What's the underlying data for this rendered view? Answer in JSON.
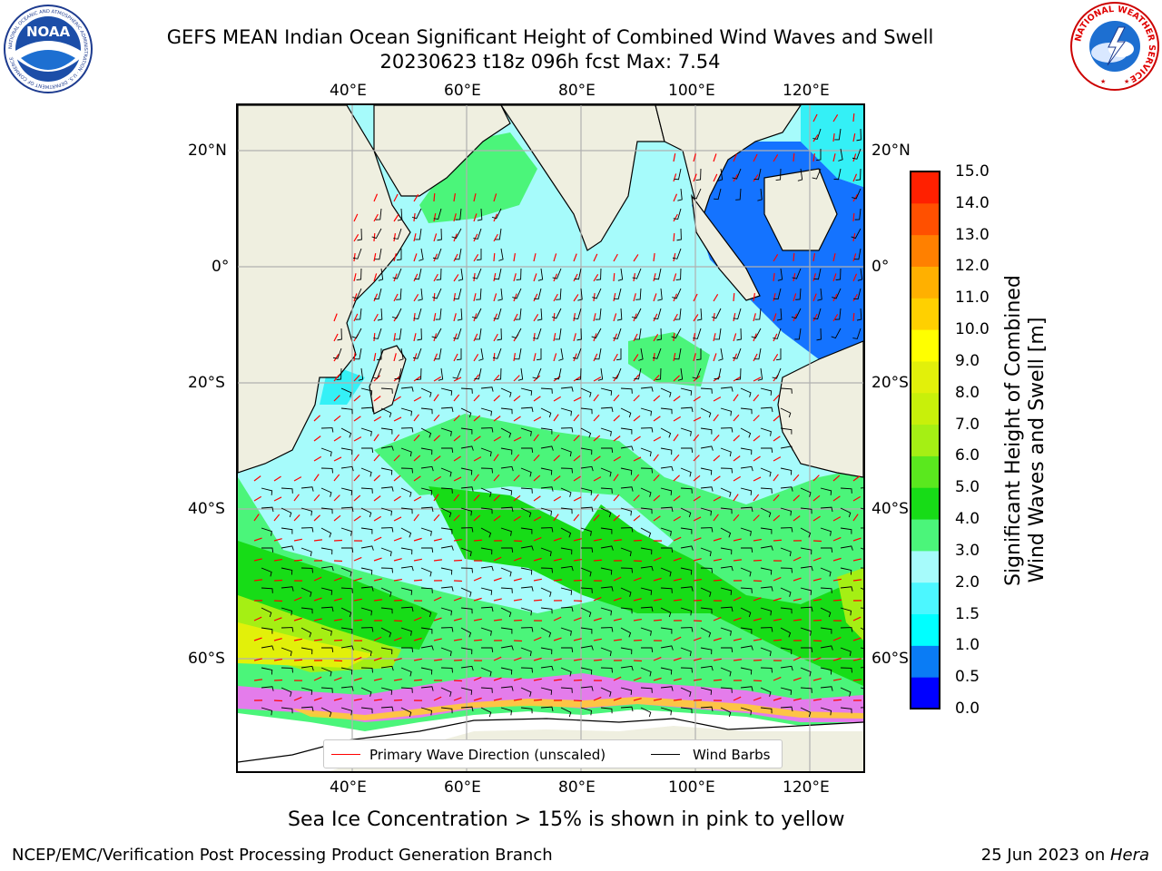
{
  "header": {
    "title_line1": "GEFS MEAN Indian Ocean Significant Height of Combined Wind Waves and Swell",
    "title_line2": "20230623 t18z 096h fcst   Max: 7.54"
  },
  "logos": {
    "noaa_text": "NOAA",
    "noaa_ring_text": "NATIONAL OCEANIC AND ATMOSPHERIC ADMINISTRATION · U.S. DEPARTMENT OF COMMERCE",
    "nws_ring_text": "NATIONAL WEATHER SERVICE"
  },
  "map": {
    "lon_ticks_top": [
      "40°E",
      "60°E",
      "80°E",
      "100°E",
      "120°E"
    ],
    "lon_ticks_bottom": [
      "40°E",
      "60°E",
      "80°E",
      "100°E",
      "120°E"
    ],
    "lat_ticks_left": [
      "20°N",
      "0°",
      "20°S",
      "40°S",
      "60°S"
    ],
    "lat_ticks_right": [
      "20°N",
      "0°",
      "20°S",
      "40°S",
      "60°S"
    ],
    "colors": {
      "land": "#efefe0",
      "wave_lightcyan": "#a6fbfb",
      "wave_green": "#4bf57a",
      "wave_bright_green": "#17dc17",
      "wave_yellowgreen": "#a5ef14",
      "wave_yellow": "#e2f00a",
      "wave_blue": "#1473ff",
      "wave_cyan": "#34f0f6",
      "arrow": "#ff0000",
      "barb": "#000000"
    }
  },
  "legend": {
    "items": [
      {
        "label": "Primary Wave Direction (unscaled)",
        "color": "#ff0000"
      },
      {
        "label": "Wind Barbs",
        "color": "#000000"
      }
    ]
  },
  "colorbar": {
    "title_line1": "Significant Height of Combined",
    "title_line2": "Wind Waves and Swell [m]",
    "levels": [
      "0.0",
      "0.5",
      "1.0",
      "1.5",
      "2.0",
      "3.0",
      "4.0",
      "5.0",
      "6.0",
      "7.0",
      "8.0",
      "9.0",
      "10.0",
      "11.0",
      "12.0",
      "13.0",
      "14.0",
      "15.0"
    ],
    "colors": [
      "#0000ff",
      "#0a7cf5",
      "#00ffff",
      "#4cf7ff",
      "#a6fbfb",
      "#4bf57a",
      "#17dc17",
      "#5ae81e",
      "#a5ef14",
      "#c8f00a",
      "#e2f00a",
      "#ffff00",
      "#ffd000",
      "#ffb000",
      "#ff8000",
      "#ff5000",
      "#ff2000"
    ]
  },
  "notes": {
    "sea_ice": "Sea Ice Concentration > 15% is shown in pink to yellow"
  },
  "footer": {
    "left": "NCEP/EMC/Verification Post Processing Product Generation Branch",
    "right_prefix": "25 Jun 2023 on ",
    "right_host": "Hera"
  }
}
